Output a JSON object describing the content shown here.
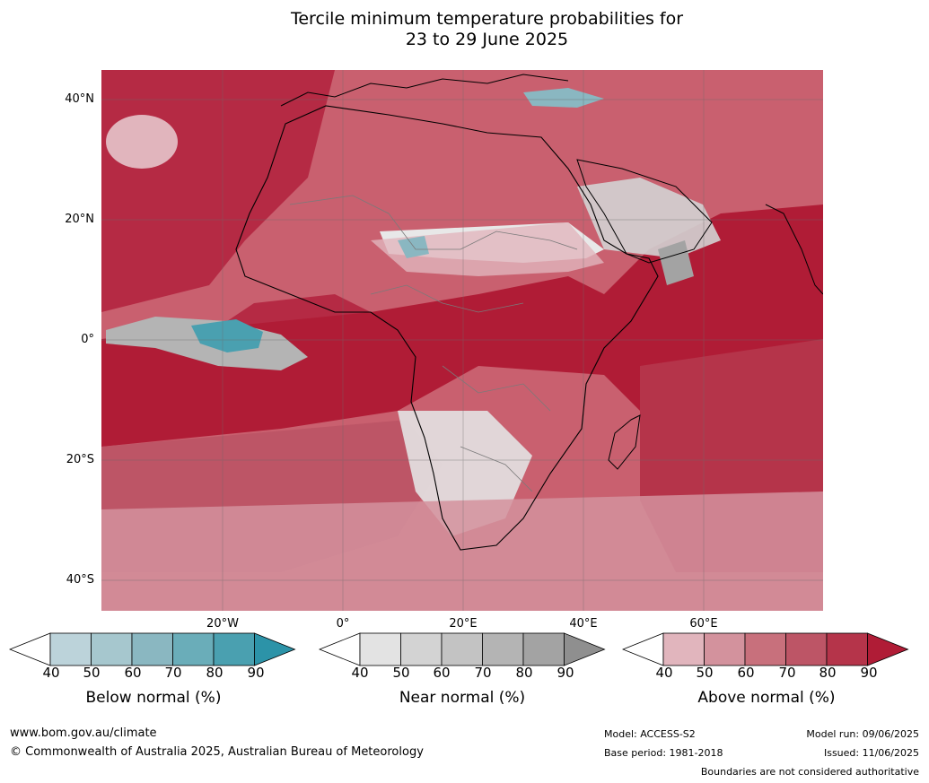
{
  "title_line1": "Tercile minimum temperature probabilities for",
  "title_line2": "23 to 29 June 2025",
  "lat_labels": [
    "40°N",
    "20°N",
    "0°",
    "20°S",
    "40°S"
  ],
  "lon_labels": [
    "20°W",
    "0°",
    "20°E",
    "40°E",
    "60°E"
  ],
  "colorbars": [
    {
      "label": "Below normal (%)",
      "ticks": [
        "40",
        "50",
        "60",
        "70",
        "80",
        "90"
      ],
      "colors": [
        "#ffffff",
        "#bcd3da",
        "#a6c7ce",
        "#8ab7c1",
        "#6aadb9",
        "#4aa0b0",
        "#2c93a8"
      ]
    },
    {
      "label": "Near normal (%)",
      "ticks": [
        "40",
        "50",
        "60",
        "70",
        "80",
        "90"
      ],
      "colors": [
        "#ffffff",
        "#e3e3e3",
        "#d3d3d3",
        "#c3c3c3",
        "#b4b4b4",
        "#a3a3a3",
        "#8f8f8f"
      ]
    },
    {
      "label": "Above normal (%)",
      "ticks": [
        "40",
        "50",
        "60",
        "70",
        "80",
        "90"
      ],
      "colors": [
        "#ffffff",
        "#e1b5bd",
        "#d3929d",
        "#c8707c",
        "#bd5566",
        "#b5344a",
        "#b01c36"
      ]
    }
  ],
  "footer": {
    "website": "www.bom.gov.au/climate",
    "copyright": "© Commonwealth of Australia 2025, Australian Bureau of Meteorology",
    "model": "Model: ACCESS-S2",
    "base_period": "Base period: 1981-2018",
    "model_run": "Model run: 09/06/2025",
    "issued": "Issued: 11/06/2025",
    "disclaimer": "Boundaries are not considered authoritative"
  }
}
